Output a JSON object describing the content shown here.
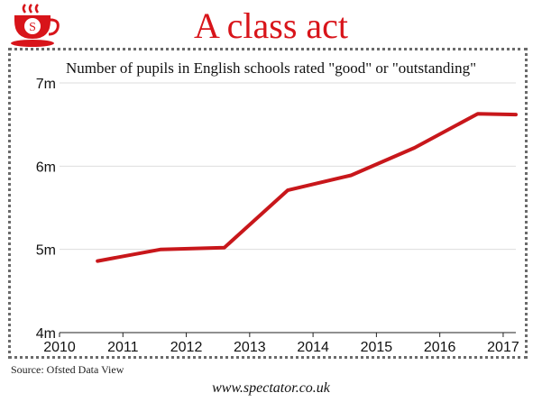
{
  "header": {
    "title": "A class act",
    "logo_letter": "S",
    "brand_color": "#d8141a"
  },
  "chart_data": {
    "type": "line",
    "title": "Number of pupils in English schools rated \"good\" or \"outstanding\"",
    "xlabel": "",
    "ylabel": "",
    "x_ticks": [
      "2010",
      "2011",
      "2012",
      "2013",
      "2014",
      "2015",
      "2016",
      "2017"
    ],
    "y_ticks": [
      "4m",
      "5m",
      "6m",
      "7m"
    ],
    "xlim": [
      2010,
      2017.2
    ],
    "ylim": [
      4,
      7
    ],
    "grid": true,
    "series": [
      {
        "color": "#c8171b",
        "x": [
          2010.6,
          2011.6,
          2012.6,
          2013.6,
          2014.6,
          2015.6,
          2016.6,
          2017.2
        ],
        "y": [
          4.86,
          5.0,
          5.02,
          5.71,
          5.89,
          6.22,
          6.63,
          6.62
        ]
      }
    ]
  },
  "footer": {
    "source": "Source: Ofsted Data View",
    "url": "www.spectator.co.uk"
  }
}
